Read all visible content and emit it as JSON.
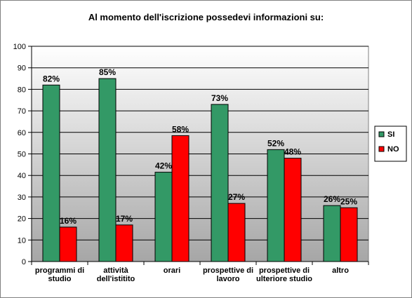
{
  "chart_data": {
    "type": "bar",
    "title": "Al momento dell'iscrizione possedevi  informazioni su:",
    "categories": [
      [
        "programmi di",
        "studio"
      ],
      [
        "attività",
        "dell'istitito"
      ],
      [
        "orari"
      ],
      [
        "prospettive di",
        "lavoro"
      ],
      [
        "prospettive  di",
        "ulteriore studio"
      ],
      [
        "altro"
      ]
    ],
    "series": [
      {
        "name": "SI",
        "values": [
          82,
          85,
          41.5,
          73,
          52,
          26
        ],
        "labels": [
          "82%",
          "85%",
          "42%",
          "73%",
          "52%",
          "26%"
        ],
        "color": "#339966"
      },
      {
        "name": "NO",
        "values": [
          16,
          17,
          58.5,
          27,
          48,
          25
        ],
        "labels": [
          "16%",
          "17%",
          "58%",
          "27%",
          "48%",
          "25%"
        ],
        "color": "#ff0000"
      }
    ],
    "ylim": [
      0,
      100
    ],
    "yticks": [
      "0",
      "10",
      "20",
      "30",
      "40",
      "50",
      "60",
      "70",
      "80",
      "90",
      "100"
    ],
    "grid": true,
    "legend": "right"
  }
}
